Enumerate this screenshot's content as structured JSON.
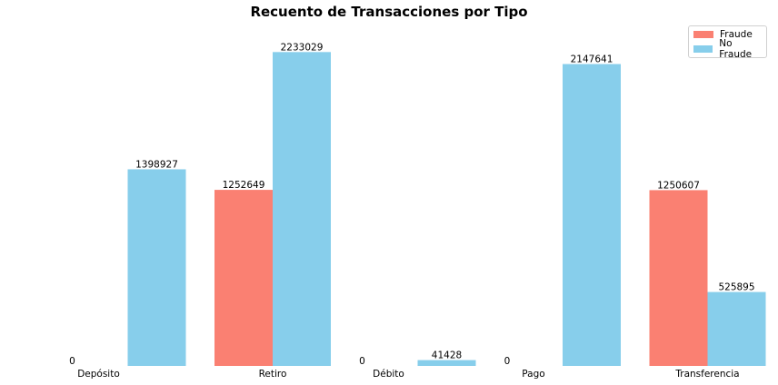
{
  "chart_data": {
    "type": "bar",
    "title": "Recuento de Transacciones por Tipo",
    "categories": [
      "Depósito",
      "Retiro",
      "Débito",
      "Pago",
      "Transferencia"
    ],
    "series": [
      {
        "name": "Fraude",
        "values": [
          0,
          1252649,
          null,
          0,
          1250607
        ],
        "color": "#fa8072"
      },
      {
        "name": "No Fraude",
        "values": [
          1398927,
          2233029,
          41428,
          2147641,
          525895
        ],
        "color": "#87ceeb"
      }
    ],
    "value_labels": {
      "Fraude": [
        "0",
        "1252649",
        "0",
        "0",
        "1250607"
      ],
      "No Fraude": [
        "1398927",
        "2233029",
        "41428",
        "2147641",
        "525895"
      ]
    },
    "ylim": [
      0,
      2345000
    ],
    "xlabel": "",
    "ylabel": "",
    "grid": false,
    "legend_position": "top-right"
  }
}
